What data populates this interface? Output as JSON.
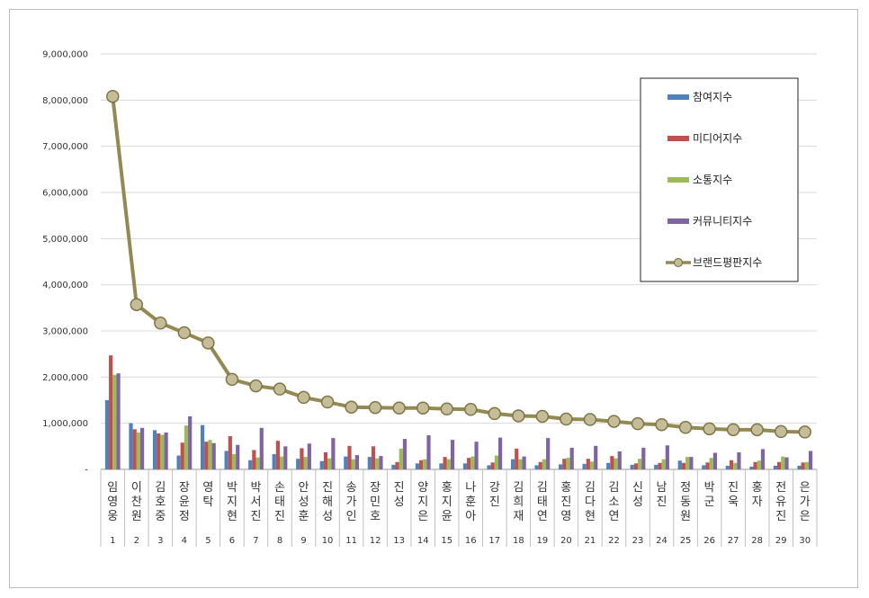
{
  "chart_data": {
    "type": "bar",
    "ylim": [
      0,
      9000000
    ],
    "y_ticks": [
      "-",
      "1,000,000",
      "2,000,000",
      "3,000,000",
      "4,000,000",
      "5,000,000",
      "6,000,000",
      "7,000,000",
      "8,000,000",
      "9,000,000"
    ],
    "grid": true,
    "legend_position": "top-right",
    "categories": [
      "임영웅",
      "이찬원",
      "김호중",
      "장윤정",
      "영탁",
      "박지현",
      "박서진",
      "손태진",
      "안성훈",
      "진해성",
      "송가인",
      "장민호",
      "진성",
      "양지은",
      "홍지윤",
      "나훈아",
      "강진",
      "김희재",
      "김태연",
      "홍진영",
      "김다현",
      "김소연",
      "신성",
      "남진",
      "정동원",
      "박군",
      "진욱",
      "홍자",
      "전유진",
      "은가은"
    ],
    "ranks": [
      "1",
      "2",
      "3",
      "4",
      "5",
      "6",
      "7",
      "8",
      "9",
      "10",
      "11",
      "12",
      "13",
      "14",
      "15",
      "16",
      "17",
      "18",
      "19",
      "20",
      "21",
      "22",
      "23",
      "24",
      "25",
      "26",
      "27",
      "28",
      "29",
      "30"
    ],
    "series": [
      {
        "name": "참여지수",
        "type": "bar",
        "color": "#4f81bd",
        "values": [
          1500000,
          1000000,
          850000,
          300000,
          960000,
          400000,
          200000,
          330000,
          230000,
          180000,
          280000,
          270000,
          100000,
          130000,
          130000,
          130000,
          90000,
          220000,
          90000,
          110000,
          120000,
          140000,
          100000,
          100000,
          190000,
          90000,
          80000,
          60000,
          80000,
          80000
        ]
      },
      {
        "name": "미디어지수",
        "type": "bar",
        "color": "#c0504d",
        "values": [
          2470000,
          870000,
          780000,
          580000,
          600000,
          720000,
          420000,
          620000,
          460000,
          370000,
          510000,
          500000,
          160000,
          200000,
          270000,
          250000,
          150000,
          450000,
          160000,
          230000,
          230000,
          290000,
          130000,
          140000,
          140000,
          150000,
          200000,
          160000,
          160000,
          150000
        ]
      },
      {
        "name": "소통지수",
        "type": "bar",
        "color": "#9bbb59",
        "values": [
          2050000,
          800000,
          750000,
          950000,
          640000,
          330000,
          260000,
          280000,
          270000,
          240000,
          220000,
          240000,
          450000,
          220000,
          220000,
          280000,
          300000,
          220000,
          220000,
          250000,
          170000,
          240000,
          230000,
          220000,
          270000,
          250000,
          140000,
          190000,
          280000,
          160000
        ]
      },
      {
        "name": "커뮤니티지수",
        "type": "bar",
        "color": "#8064a2",
        "values": [
          2080000,
          900000,
          800000,
          1150000,
          570000,
          530000,
          900000,
          500000,
          560000,
          680000,
          310000,
          290000,
          660000,
          740000,
          640000,
          600000,
          690000,
          280000,
          680000,
          470000,
          510000,
          390000,
          470000,
          520000,
          270000,
          360000,
          370000,
          440000,
          260000,
          400000
        ]
      },
      {
        "name": "브랜드평판지수",
        "type": "line",
        "color": "#938953",
        "values": [
          8080000,
          3570000,
          3170000,
          2960000,
          2740000,
          1950000,
          1810000,
          1740000,
          1560000,
          1460000,
          1350000,
          1340000,
          1330000,
          1330000,
          1310000,
          1300000,
          1210000,
          1160000,
          1150000,
          1090000,
          1080000,
          1040000,
          990000,
          970000,
          910000,
          880000,
          860000,
          860000,
          820000,
          810000
        ]
      }
    ]
  }
}
